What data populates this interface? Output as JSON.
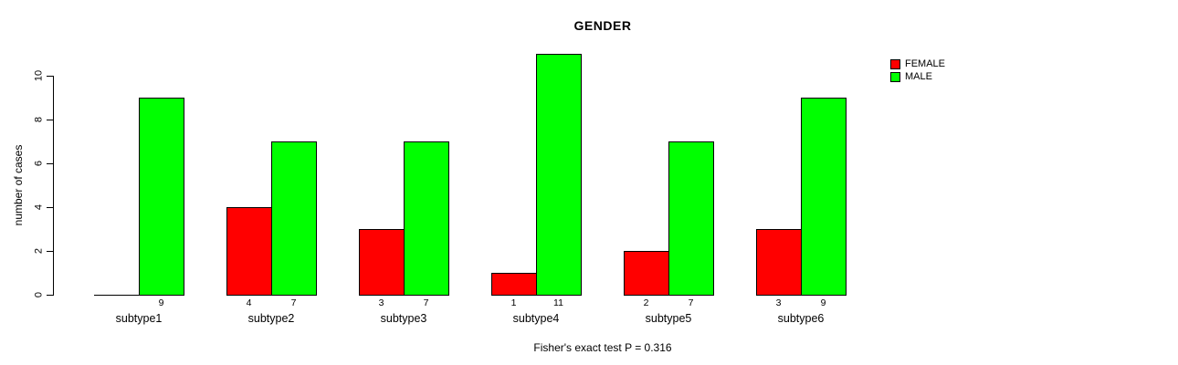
{
  "chart_data": {
    "type": "bar",
    "title": "GENDER",
    "ylabel": "number of cases",
    "xlabel": "",
    "categories": [
      "subtype1",
      "subtype2",
      "subtype3",
      "subtype4",
      "subtype5",
      "subtype6"
    ],
    "series": [
      {
        "name": "FEMALE",
        "color": "#FF0000",
        "values": [
          0,
          4,
          3,
          1,
          2,
          3
        ]
      },
      {
        "name": "MALE",
        "color": "#00FF00",
        "values": [
          9,
          7,
          7,
          11,
          7,
          9
        ]
      }
    ],
    "bar_value_labels": [
      [
        "",
        "4",
        "3",
        "1",
        "2",
        "3"
      ],
      [
        "9",
        "7",
        "7",
        "11",
        "7",
        "9"
      ]
    ],
    "yticks": [
      0,
      2,
      4,
      6,
      8,
      10
    ],
    "ylim": [
      0,
      11
    ],
    "grid": false,
    "legend_position": "top-right",
    "caption": "Fisher's exact test P = 0.316",
    "colors": {
      "background": "#FFFFFF",
      "axis": "#000000",
      "text": "#000000"
    }
  }
}
